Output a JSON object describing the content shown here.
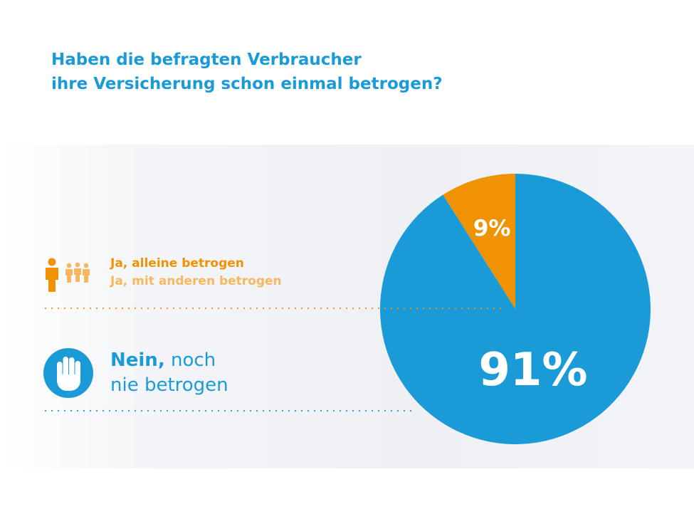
{
  "title": {
    "line1": "Haben die befragten Verbraucher",
    "line2": "ihre Versicherung schon einmal betrogen?"
  },
  "legend": {
    "ja_allein": "Ja, alleine betrogen",
    "ja_mit_anderen": "Ja, mit anderen betrogen",
    "nein_bold": "Nein,",
    "nein_rest": "noch",
    "nein_line2": "nie betrogen"
  },
  "colors": {
    "blue": "#1a9bd8",
    "orange": "#ef9204",
    "light_orange": "#f6b760"
  },
  "icons": {
    "person": "person-icon",
    "group": "group-icon",
    "hand": "stop-hand-icon"
  },
  "chart_data": {
    "type": "pie",
    "title": "Haben die befragten Verbraucher ihre Versicherung schon einmal betrogen?",
    "slices": [
      {
        "label": "Ja",
        "value": 9,
        "display": "9%",
        "color": "#ef9204"
      },
      {
        "label": "Nein",
        "value": 91,
        "display": "91%",
        "color": "#1a9bd8"
      }
    ]
  }
}
